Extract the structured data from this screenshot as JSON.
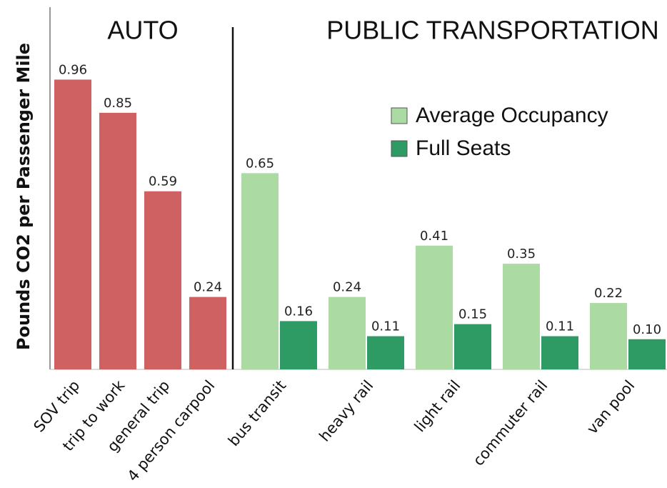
{
  "chart_data": {
    "type": "bar",
    "y_label": "Pounds CO2 per Passenger Mile",
    "section_labels": [
      "AUTO",
      "PUBLIC TRANSPORTATION"
    ],
    "categories": [
      "SOV trip",
      "trip to work",
      "general trip",
      "4 person carpool",
      "bus transit",
      "heavy rail",
      "light rail",
      "commuter rail",
      "van pool"
    ],
    "series": [
      {
        "color": "#cf6163",
        "values": [
          0.96,
          0.85,
          0.59,
          0.24,
          null,
          null,
          null,
          null,
          null
        ]
      },
      {
        "name": "Average Occupancy",
        "color": "#acdaa3",
        "values": [
          null,
          null,
          null,
          null,
          0.65,
          0.24,
          0.41,
          0.35,
          0.22
        ]
      },
      {
        "name": "Full Seats",
        "color": "#2f9b64",
        "values": [
          null,
          null,
          null,
          null,
          0.16,
          0.11,
          0.15,
          0.11,
          0.1
        ],
        "value_labels": [
          null,
          null,
          null,
          null,
          "0.16",
          "0.11",
          "0.15",
          "0.11",
          "0.10"
        ]
      }
    ],
    "ylim": [
      0,
      1.2
    ],
    "legend": "upper right"
  }
}
